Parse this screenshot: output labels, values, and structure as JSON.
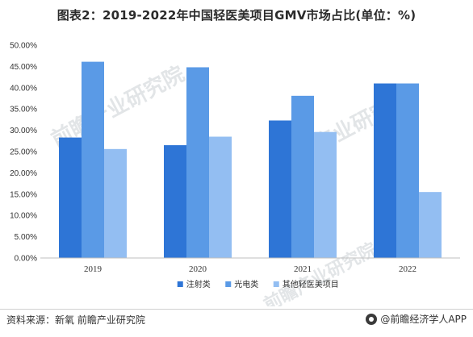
{
  "title": "图表2：2019-2022年中国轻医美项目GMV市场占比(单位：%)",
  "source": "资料来源：新氧 前瞻产业研究院",
  "brand": "@前瞻经济学人APP",
  "watermark": "前瞻产业研究院",
  "chart_data": {
    "type": "bar",
    "categories": [
      "2019",
      "2020",
      "2021",
      "2022"
    ],
    "series": [
      {
        "name": "注射类",
        "color": "#2e75d6",
        "values": [
          28.3,
          26.5,
          32.3,
          41.0
        ]
      },
      {
        "name": "光电类",
        "color": "#5a9ae6",
        "values": [
          46.1,
          44.8,
          38.1,
          41.0
        ]
      },
      {
        "name": "其他轻医美项目",
        "color": "#93bef2",
        "values": [
          25.6,
          28.5,
          29.6,
          15.5
        ]
      }
    ],
    "yticks": [
      "0.00%",
      "5.00%",
      "10.00%",
      "15.00%",
      "20.00%",
      "25.00%",
      "30.00%",
      "35.00%",
      "40.00%",
      "45.00%",
      "50.00%"
    ],
    "ylim": [
      0,
      50
    ],
    "legend_position": "bottom",
    "grid": false
  }
}
